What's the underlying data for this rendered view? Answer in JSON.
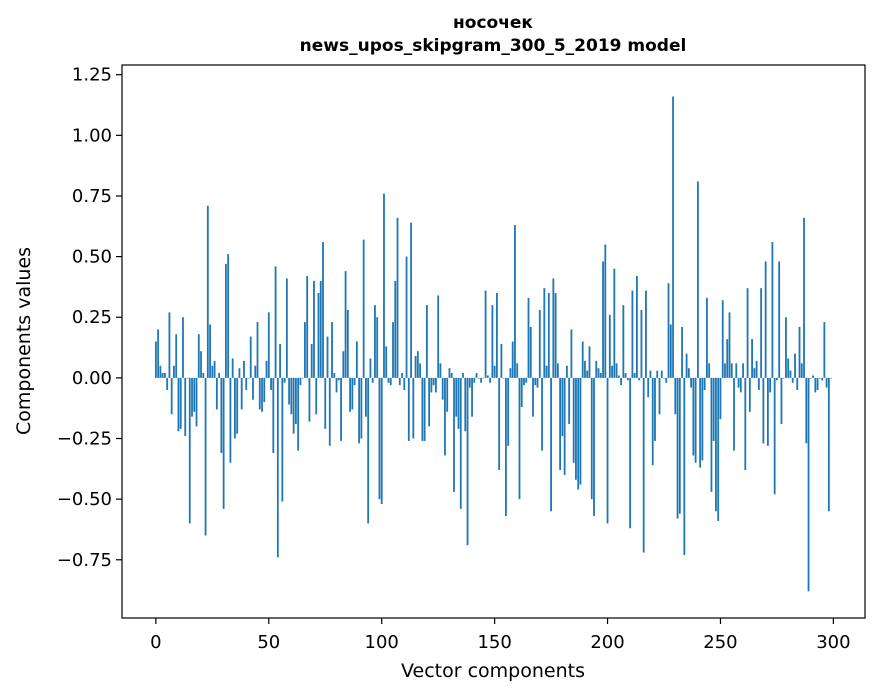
{
  "chart_data": {
    "type": "bar",
    "title": "носочек",
    "subtitle": "news_upos_skipgram_300_5_2019 model",
    "xlabel": "Vector components",
    "ylabel": "Components values",
    "xlim": [
      -15,
      314
    ],
    "ylim": [
      -0.99,
      1.29
    ],
    "xticks": [
      0,
      50,
      100,
      150,
      200,
      250,
      300
    ],
    "xtick_labels": [
      "0",
      "50",
      "100",
      "150",
      "200",
      "250",
      "300"
    ],
    "yticks": [
      1.25,
      1.0,
      0.75,
      0.5,
      0.25,
      0.0,
      -0.25,
      -0.5,
      -0.75
    ],
    "ytick_labels": [
      "1.25",
      "1.00",
      "0.75",
      "0.50",
      "0.25",
      "0.00",
      "−0.25",
      "−0.50",
      "−0.75"
    ],
    "bar_color": "#1f77b4",
    "series": [
      {
        "name": "носочек",
        "values": [
          0.15,
          0.2,
          0.05,
          0.02,
          0.02,
          -0.05,
          0.27,
          -0.15,
          0.05,
          0.18,
          -0.22,
          -0.21,
          0.25,
          -0.24,
          0.0,
          -0.6,
          -0.16,
          -0.14,
          -0.2,
          0.18,
          0.11,
          0.02,
          -0.65,
          0.71,
          0.22,
          0.05,
          0.07,
          -0.13,
          0.02,
          -0.31,
          -0.54,
          0.47,
          0.51,
          -0.35,
          0.08,
          -0.25,
          -0.23,
          0.04,
          -0.13,
          0.07,
          -0.05,
          0.0,
          0.17,
          -0.09,
          0.05,
          0.23,
          -0.13,
          -0.14,
          -0.1,
          0.07,
          0.27,
          -0.05,
          -0.31,
          0.46,
          -0.74,
          0.14,
          -0.51,
          -0.02,
          0.41,
          -0.11,
          -0.15,
          -0.23,
          -0.19,
          -0.3,
          -0.03,
          0.0,
          0.23,
          0.42,
          -0.18,
          0.14,
          0.4,
          -0.15,
          0.35,
          0.4,
          0.56,
          -0.21,
          0.17,
          -0.28,
          0.23,
          0.02,
          -0.06,
          -0.01,
          -0.26,
          0.11,
          0.44,
          0.28,
          -0.14,
          -0.13,
          -0.03,
          0.15,
          -0.27,
          -0.25,
          0.57,
          -0.16,
          -0.6,
          0.08,
          -0.02,
          0.3,
          0.25,
          -0.5,
          -0.52,
          0.76,
          0.13,
          -0.02,
          -0.03,
          0.23,
          0.4,
          0.66,
          -0.03,
          0.02,
          -0.05,
          0.5,
          -0.26,
          0.64,
          -0.25,
          0.09,
          0.11,
          0.06,
          -0.26,
          -0.26,
          0.3,
          -0.2,
          -0.06,
          -0.03,
          -0.06,
          0.34,
          0.06,
          -0.09,
          -0.32,
          -0.14,
          0.04,
          0.02,
          -0.47,
          -0.16,
          -0.21,
          -0.54,
          0.02,
          -0.22,
          -0.69,
          -0.04,
          -0.16,
          -0.02,
          0.02,
          0.0,
          -0.02,
          0.0,
          0.36,
          0.01,
          -0.02,
          0.3,
          0.05,
          0.35,
          -0.38,
          0.14,
          0.0,
          -0.57,
          -0.28,
          0.04,
          0.15,
          0.63,
          0.06,
          -0.5,
          -0.12,
          -0.03,
          -0.02,
          0.33,
          0.21,
          -0.16,
          -0.03,
          -0.04,
          0.28,
          -0.3,
          0.37,
          0.05,
          0.35,
          -0.55,
          0.41,
          0.35,
          0.06,
          -0.38,
          -0.24,
          -0.4,
          0.05,
          -0.19,
          0.2,
          -0.35,
          -0.42,
          -0.46,
          -0.44,
          0.15,
          0.07,
          0.03,
          0.13,
          -0.5,
          -0.57,
          0.07,
          0.04,
          0.02,
          0.48,
          0.55,
          -0.6,
          0.26,
          0.05,
          0.45,
          0.06,
          0.01,
          -0.03,
          0.3,
          0.02,
          -0.01,
          -0.62,
          0.36,
          0.02,
          0.42,
          -0.01,
          0.28,
          -0.72,
          0.36,
          -0.08,
          0.03,
          -0.36,
          -0.26,
          0.03,
          -0.15,
          0.03,
          0.0,
          -0.02,
          0.39,
          0.22,
          1.16,
          -0.15,
          -0.58,
          -0.56,
          0.21,
          -0.73,
          0.1,
          0.04,
          -0.04,
          -0.32,
          -0.35,
          0.81,
          -0.37,
          -0.34,
          -0.05,
          0.33,
          0.06,
          -0.47,
          -0.26,
          -0.55,
          -0.59,
          -0.17,
          0.32,
          0.06,
          0.16,
          0.27,
          0.06,
          -0.3,
          0.06,
          -0.04,
          -0.06,
          0.06,
          -0.38,
          0.37,
          -0.14,
          0.16,
          0.04,
          0.07,
          -0.05,
          0.37,
          -0.27,
          0.48,
          -0.28,
          -0.06,
          0.56,
          -0.48,
          -0.01,
          0.48,
          -0.19,
          0.0,
          0.25,
          0.08,
          0.03,
          -0.02,
          0.1,
          -0.05,
          0.21,
          0.06,
          0.66,
          -0.27,
          -0.88,
          0.0,
          0.01,
          -0.06,
          -0.05,
          0.0,
          -0.01,
          0.23,
          -0.04,
          -0.55,
          0.0
        ]
      }
    ]
  }
}
